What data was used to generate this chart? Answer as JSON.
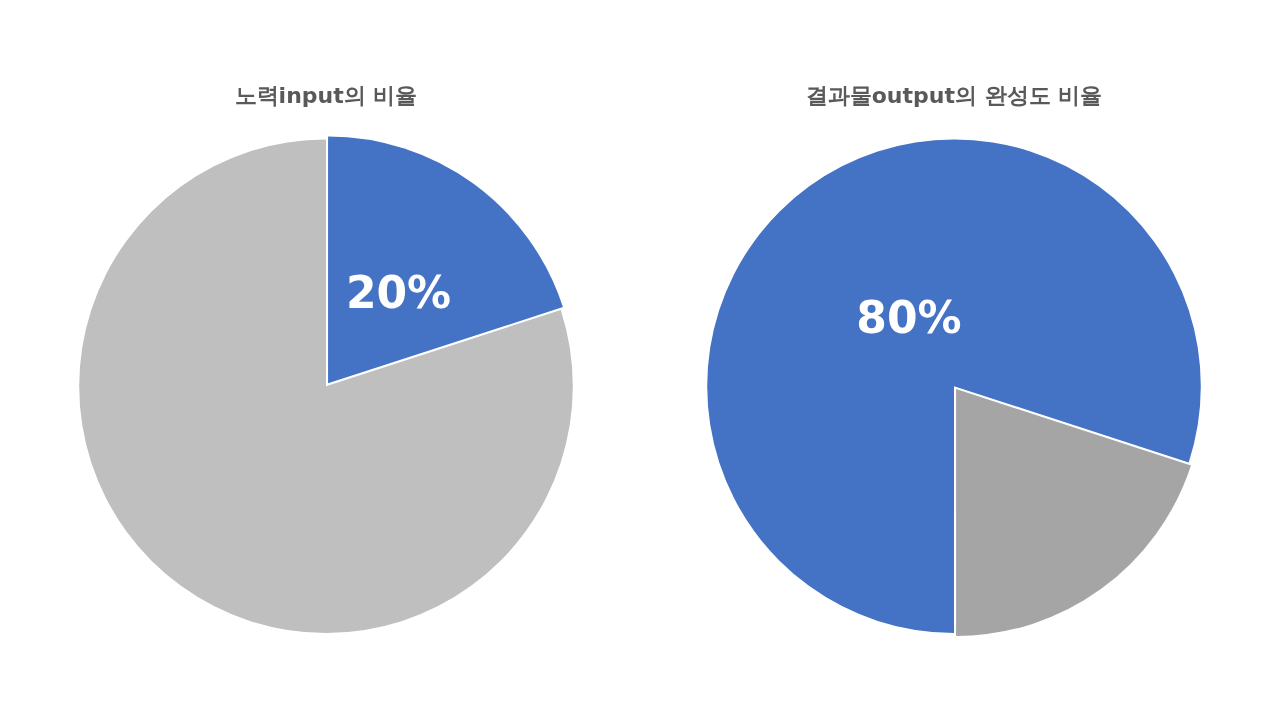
{
  "chart_data": [
    {
      "type": "pie",
      "title": "노력input의 비율",
      "categories": [
        null,
        null
      ],
      "values": [
        20,
        80
      ],
      "colors": [
        "#4472c4",
        "#bfbfbf"
      ],
      "value_labels": [
        "20%",
        null
      ],
      "legend": false
    },
    {
      "type": "pie",
      "title": "결과물output의 완성도 비율",
      "categories": [
        null,
        null
      ],
      "values": [
        80,
        20
      ],
      "colors": [
        "#4472c4",
        "#a5a5a5"
      ],
      "value_labels": [
        "80%",
        null
      ],
      "legend": false
    }
  ]
}
